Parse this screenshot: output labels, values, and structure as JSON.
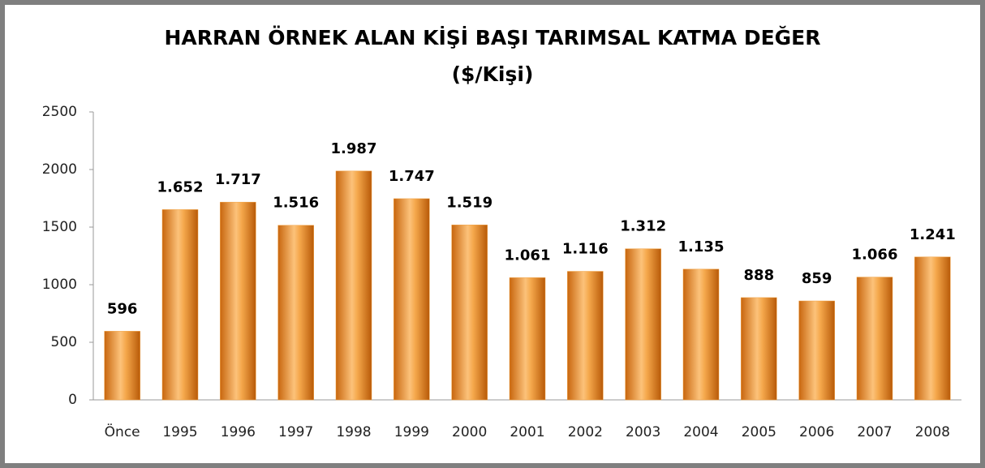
{
  "chart_data": {
    "type": "bar",
    "title": "HARRAN ÖRNEK ALAN KİŞİ BAŞI TARIMSAL KATMA DEĞER",
    "subtitle": "($/Kişi)",
    "categories": [
      "Önce",
      "1995",
      "1996",
      "1997",
      "1998",
      "1999",
      "2000",
      "2001",
      "2002",
      "2003",
      "2004",
      "2005",
      "2006",
      "2007",
      "2008"
    ],
    "values": [
      596,
      1652,
      1717,
      1516,
      1987,
      1747,
      1519,
      1061,
      1116,
      1312,
      1135,
      888,
      859,
      1066,
      1241
    ],
    "value_labels": [
      "596",
      "1.652",
      "1.717",
      "1.516",
      "1.987",
      "1.747",
      "1.519",
      "1.061",
      "1.116",
      "1.312",
      "1.135",
      "888",
      "859",
      "1.066",
      "1.241"
    ],
    "color": "#f0a040",
    "ylim": [
      0,
      2500
    ],
    "yticks": [
      0,
      500,
      1000,
      1500,
      2000,
      2500
    ],
    "grid": false
  }
}
